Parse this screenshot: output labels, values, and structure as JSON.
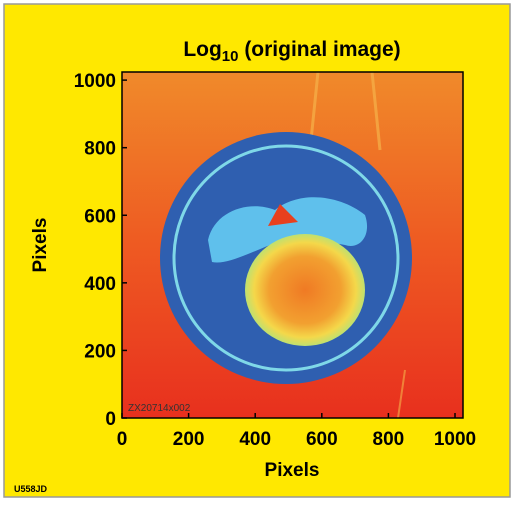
{
  "chart_data": {
    "type": "image",
    "title": {
      "base": "Log",
      "subscript": "10",
      "rest": " (original image)"
    },
    "xlabel": "Pixels",
    "ylabel": "Pixels",
    "xlim": [
      0,
      1024
    ],
    "ylim": [
      0,
      1024
    ],
    "xticks": [
      0,
      200,
      400,
      600,
      800,
      1000
    ],
    "yticks": [
      0,
      200,
      400,
      600,
      800,
      1000
    ],
    "image_label": "ZX20714x002",
    "figure_id": "U558JD"
  }
}
